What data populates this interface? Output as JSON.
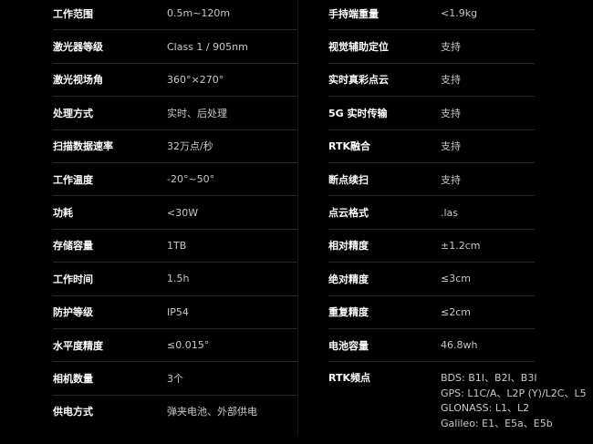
{
  "left_specs": [
    {
      "label": "工作范围",
      "value": "0.5m~120m"
    },
    {
      "label": "激光器等级",
      "value": "Class 1 / 905nm"
    },
    {
      "label": "激光视场角",
      "value": "360°×270°"
    },
    {
      "label": "处理方式",
      "value": "实时、后处理"
    },
    {
      "label": "扫描数据速率",
      "value": "32万点/秒"
    },
    {
      "label": "工作温度",
      "value": "-20°~50°"
    },
    {
      "label": "功耗",
      "value": "<30W"
    },
    {
      "label": "存储容量",
      "value": "1TB"
    },
    {
      "label": "工作时间",
      "value": "1.5h"
    },
    {
      "label": "防护等级",
      "value": "IP54"
    },
    {
      "label": "水平度精度",
      "value": "≤0.015°"
    },
    {
      "label": "相机数量",
      "value": "3个"
    },
    {
      "label": "供电方式",
      "value": "弹夹电池、外部供电"
    }
  ],
  "right_specs": [
    {
      "label": "手持端重量",
      "value": "<1.9kg"
    },
    {
      "label": "视觉辅助定位",
      "value": "支持"
    },
    {
      "label": "实时真彩点云",
      "value": "支持"
    },
    {
      "label": "5G 实时传输",
      "value": "支持"
    },
    {
      "label": "RTK融合",
      "value": "支持"
    },
    {
      "label": "断点续扫",
      "value": "支持"
    },
    {
      "label": "点云格式",
      "value": ".las"
    },
    {
      "label": "相对精度",
      "value": "±1.2cm"
    },
    {
      "label": "绝对精度",
      "value": "≤3cm"
    },
    {
      "label": "重复精度",
      "value": "≤2cm"
    },
    {
      "label": "电池容量",
      "value": "46.8wh"
    }
  ],
  "rtk": {
    "label": "RTK频点",
    "lines": [
      "BDS: B1I、B2I、B3I",
      "GPS: L1C/A、L2P (Y)/L2C、L5",
      "GLONASS: L1、L2",
      "Galileo: E1、E5a、E5b"
    ]
  }
}
